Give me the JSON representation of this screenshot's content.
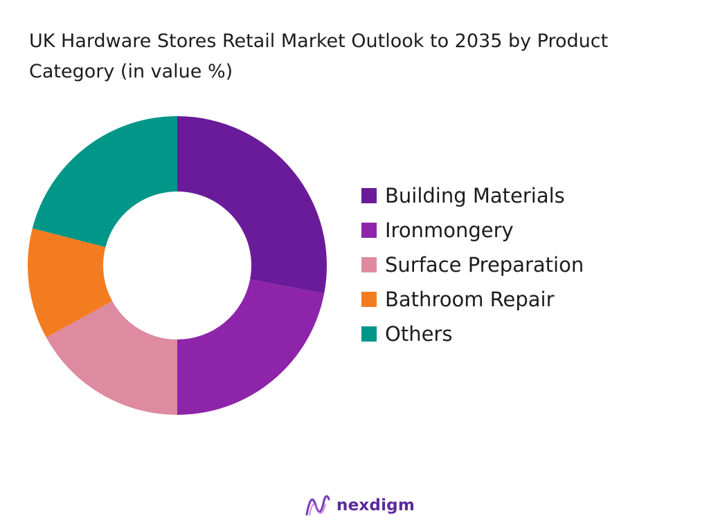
{
  "chart_data": {
    "type": "pie",
    "title_lines": [
      "UK Hardware Stores Retail Market Outlook to 2035 by Product",
      "Category (in value %)"
    ],
    "categories": [
      "Building Materials",
      "Ironmongery",
      "Surface Preparation",
      "Bathroom Repair",
      "Others"
    ],
    "values": [
      28,
      22,
      17,
      12,
      21
    ],
    "colors": [
      "#6a1b9a",
      "#8e24aa",
      "#de8aa0",
      "#f47c20",
      "#009688"
    ],
    "donut": true,
    "legend_position": "right"
  },
  "footer": {
    "brand": "nexdigm",
    "logo_icon": "nexdigm-wave-icon"
  }
}
